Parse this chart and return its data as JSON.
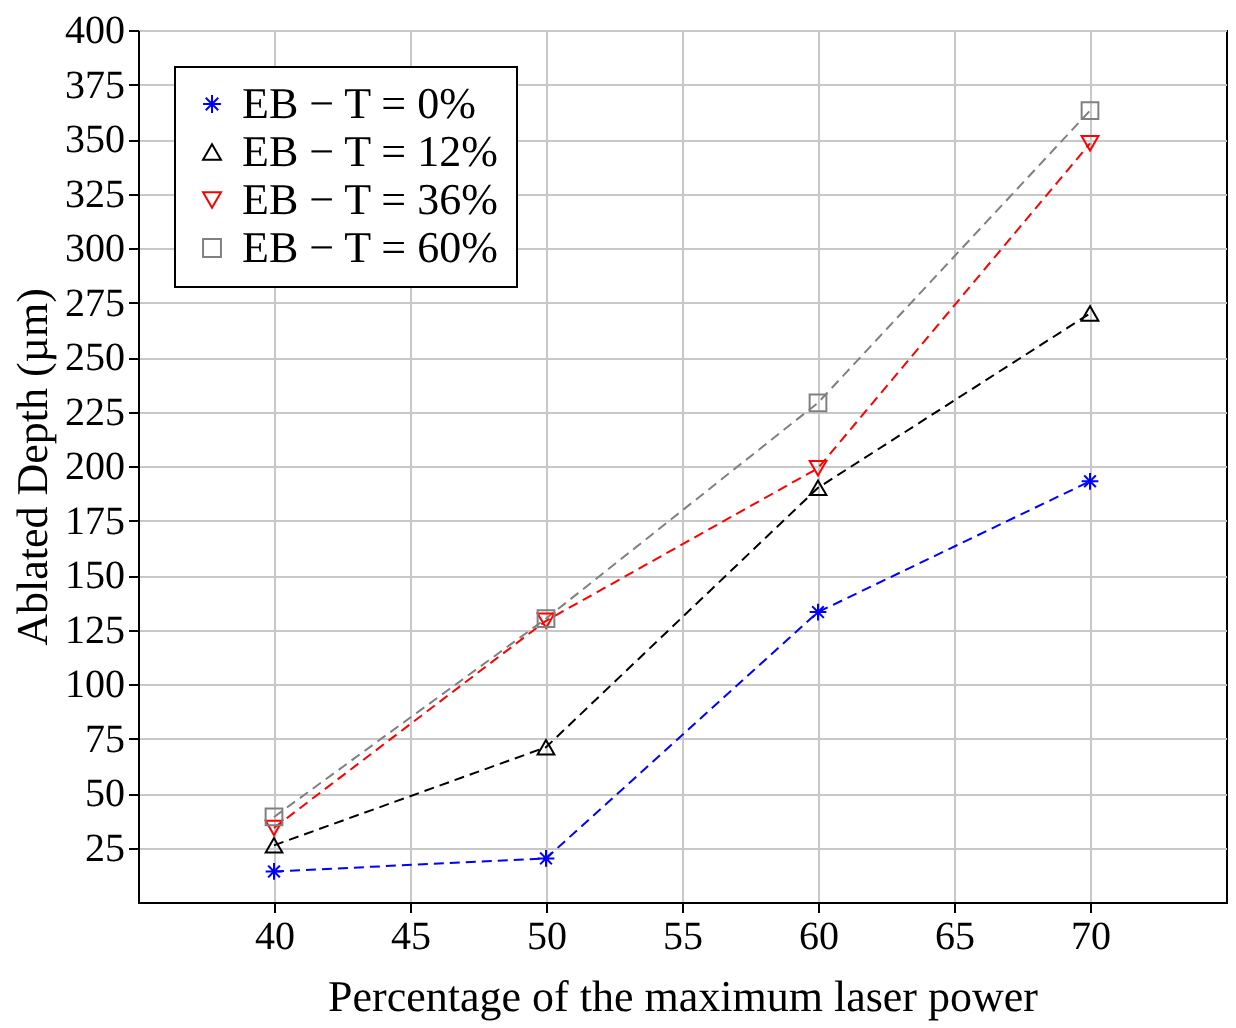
{
  "chart_data": {
    "type": "line",
    "xlabel": "Percentage of the maximum laser power",
    "ylabel": "Ablated Depth (µm)",
    "x": [
      40,
      50,
      60,
      70
    ],
    "series": [
      {
        "name": "EB − T = 0%",
        "color": "#0000ff",
        "marker": "cross",
        "values": [
          14,
          20,
          133,
          193
        ]
      },
      {
        "name": "EB − T = 12%",
        "color": "#000000",
        "marker": "triangle",
        "values": [
          26,
          71,
          190,
          270
        ]
      },
      {
        "name": "EB − T = 36%",
        "color": "#ff0000",
        "marker": "triangle-down",
        "values": [
          34,
          129,
          199,
          348
        ]
      },
      {
        "name": "EB − T = 60%",
        "color": "#808080",
        "marker": "square",
        "values": [
          39,
          130,
          229,
          363
        ]
      }
    ],
    "xlim": [
      35,
      75
    ],
    "xticks": [
      40,
      45,
      50,
      55,
      60,
      65,
      70
    ],
    "ylim": [
      0,
      400
    ],
    "yticks": [
      25,
      50,
      75,
      100,
      125,
      150,
      175,
      200,
      225,
      250,
      275,
      300,
      325,
      350,
      375,
      400
    ],
    "grid": true,
    "legend": "top left",
    "line_style": "dashed"
  }
}
